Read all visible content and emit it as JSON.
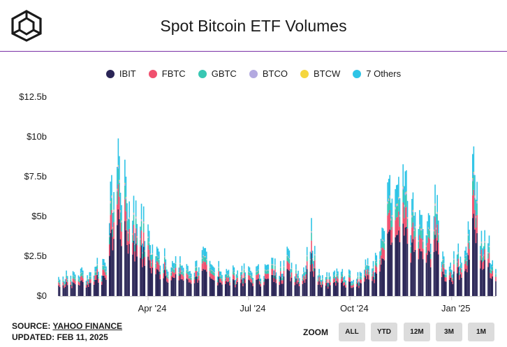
{
  "title": "Spot Bitcoin ETF Volumes",
  "legend": [
    {
      "label": "IBIT",
      "color": "#2a2556"
    },
    {
      "label": "FBTC",
      "color": "#f0506e"
    },
    {
      "label": "GBTC",
      "color": "#38c7b3"
    },
    {
      "label": "BTCO",
      "color": "#b3a9e0"
    },
    {
      "label": "BTCW",
      "color": "#f5d63d"
    },
    {
      "label": "7 Others",
      "color": "#2ec4e6"
    }
  ],
  "source": {
    "prefix": "SOURCE: ",
    "link": "YAHOO FINANCE",
    "updated": "UPDATED: FEB 11, 2025"
  },
  "zoom": {
    "label": "ZOOM",
    "buttons": [
      "ALL",
      "YTD",
      "12M",
      "3M",
      "1M"
    ]
  },
  "chart_data": {
    "type": "bar",
    "stacked": true,
    "title": "Spot Bitcoin ETF Volumes",
    "y_unit": "USD billions",
    "ylim": [
      0,
      12.5
    ],
    "y_ticks": [
      0,
      2.5,
      5,
      7.5,
      10,
      12.5
    ],
    "y_tick_labels": [
      "$0",
      "$2.5b",
      "$5b",
      "$7.5b",
      "$10b",
      "$12.5b"
    ],
    "x_range": [
      "2024-01-11",
      "2025-02-10"
    ],
    "x_ticks": [
      "2024-04-01",
      "2024-07-01",
      "2024-10-01",
      "2025-01-01"
    ],
    "x_tick_labels": [
      "Apr '24",
      "Jul '24",
      "Oct '24",
      "Jan '25"
    ],
    "grid": false,
    "legend_position": "top",
    "series_order": [
      "IBIT",
      "FBTC",
      "GBTC",
      "BTCO",
      "BTCW",
      "7 Others"
    ],
    "daily_totals": [
      {
        "date": "2024-01-11",
        "total": 1.2
      },
      {
        "date": "2024-01-18",
        "total": 1.6
      },
      {
        "date": "2024-01-25",
        "total": 1.5
      },
      {
        "date": "2024-02-01",
        "total": 1.8
      },
      {
        "date": "2024-02-08",
        "total": 1.5
      },
      {
        "date": "2024-02-15",
        "total": 2.4
      },
      {
        "date": "2024-02-22",
        "total": 2.1
      },
      {
        "date": "2024-02-28",
        "total": 7.6
      },
      {
        "date": "2024-03-05",
        "total": 9.9
      },
      {
        "date": "2024-03-12",
        "total": 7.5
      },
      {
        "date": "2024-03-19",
        "total": 6.3
      },
      {
        "date": "2024-03-26",
        "total": 5.8
      },
      {
        "date": "2024-04-02",
        "total": 4.1
      },
      {
        "date": "2024-04-09",
        "total": 3.1
      },
      {
        "date": "2024-04-16",
        "total": 3.0
      },
      {
        "date": "2024-04-23",
        "total": 2.2
      },
      {
        "date": "2024-04-30",
        "total": 2.5
      },
      {
        "date": "2024-05-07",
        "total": 1.9
      },
      {
        "date": "2024-05-14",
        "total": 2.2
      },
      {
        "date": "2024-05-21",
        "total": 3.1
      },
      {
        "date": "2024-05-28",
        "total": 2.0
      },
      {
        "date": "2024-06-04",
        "total": 2.2
      },
      {
        "date": "2024-06-11",
        "total": 1.7
      },
      {
        "date": "2024-06-18",
        "total": 1.8
      },
      {
        "date": "2024-06-25",
        "total": 1.9
      },
      {
        "date": "2024-07-02",
        "total": 1.8
      },
      {
        "date": "2024-07-09",
        "total": 1.9
      },
      {
        "date": "2024-07-16",
        "total": 2.0
      },
      {
        "date": "2024-07-23",
        "total": 2.4
      },
      {
        "date": "2024-07-30",
        "total": 2.2
      },
      {
        "date": "2024-08-05",
        "total": 3.1
      },
      {
        "date": "2024-08-13",
        "total": 2.0
      },
      {
        "date": "2024-08-20",
        "total": 1.8
      },
      {
        "date": "2024-08-27",
        "total": 4.9
      },
      {
        "date": "2024-09-03",
        "total": 1.7
      },
      {
        "date": "2024-09-10",
        "total": 1.5
      },
      {
        "date": "2024-09-17",
        "total": 1.6
      },
      {
        "date": "2024-09-24",
        "total": 1.7
      },
      {
        "date": "2024-10-01",
        "total": 1.6
      },
      {
        "date": "2024-10-08",
        "total": 1.5
      },
      {
        "date": "2024-10-15",
        "total": 2.3
      },
      {
        "date": "2024-10-22",
        "total": 2.2
      },
      {
        "date": "2024-10-29",
        "total": 3.6
      },
      {
        "date": "2024-11-06",
        "total": 7.6
      },
      {
        "date": "2024-11-13",
        "total": 7.0
      },
      {
        "date": "2024-11-21",
        "total": 7.9
      },
      {
        "date": "2024-11-26",
        "total": 6.1
      },
      {
        "date": "2024-12-03",
        "total": 5.4
      },
      {
        "date": "2024-12-10",
        "total": 4.7
      },
      {
        "date": "2024-12-17",
        "total": 7.0
      },
      {
        "date": "2024-12-24",
        "total": 2.8
      },
      {
        "date": "2024-12-31",
        "total": 2.1
      },
      {
        "date": "2025-01-07",
        "total": 3.3
      },
      {
        "date": "2025-01-14",
        "total": 3.1
      },
      {
        "date": "2025-01-21",
        "total": 9.4
      },
      {
        "date": "2025-01-28",
        "total": 4.1
      },
      {
        "date": "2025-02-04",
        "total": 3.8
      },
      {
        "date": "2025-02-10",
        "total": 1.7
      }
    ],
    "approx_share": {
      "IBIT": 0.55,
      "FBTC": 0.16,
      "GBTC": 0.1,
      "BTCO": 0.015,
      "BTCW": 0.005,
      "7 Others": 0.17
    }
  }
}
